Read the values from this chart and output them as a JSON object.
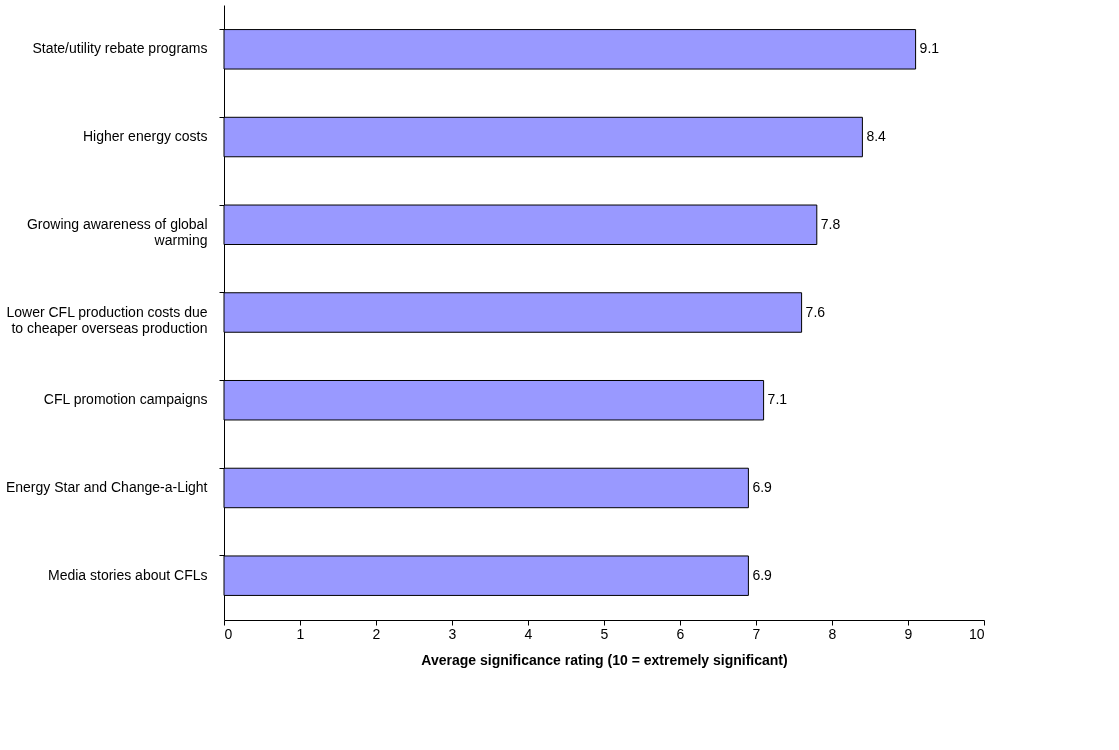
{
  "chart_data": {
    "type": "bar",
    "orientation": "horizontal",
    "xlabel": "Average significance rating (10 = extremely significant)",
    "categories": [
      "State/utility rebate programs",
      "Higher energy costs",
      "Growing awareness of global warming",
      "Lower CFL production costs due to cheaper overseas production",
      "CFL promotion campaigns",
      "Energy Star and Change-a-Light",
      "Media stories about CFLs"
    ],
    "values": [
      9.1,
      8.4,
      7.8,
      7.6,
      7.1,
      6.9,
      6.9
    ],
    "color": "#9999ff",
    "xlim": [
      0,
      10
    ],
    "xticks": [
      0,
      1,
      2,
      3,
      4,
      5,
      6,
      7,
      8,
      9,
      10
    ],
    "grid": false,
    "data_labels": true
  }
}
